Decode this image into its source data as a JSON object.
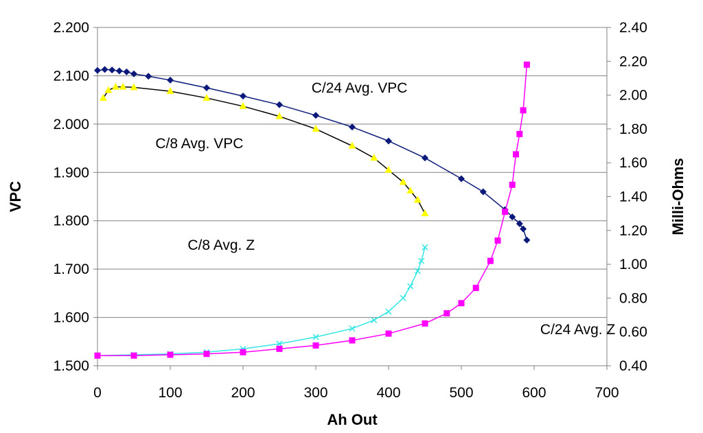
{
  "chart_data": {
    "type": "scatter",
    "xlabel": "Ah Out",
    "ylabel": "VPC",
    "y2label": "Milli-Ohms",
    "xlim": [
      0,
      700
    ],
    "ylim": [
      1.5,
      2.2
    ],
    "y2lim": [
      0.4,
      2.4
    ],
    "x_ticks": [
      "0",
      "100",
      "200",
      "300",
      "400",
      "500",
      "600",
      "700"
    ],
    "y_ticks": [
      "1.500",
      "1.600",
      "1.700",
      "1.800",
      "1.900",
      "2.000",
      "2.100",
      "2.200"
    ],
    "y2_ticks": [
      "0.40",
      "0.60",
      "0.80",
      "1.00",
      "1.20",
      "1.40",
      "1.60",
      "1.80",
      "2.00",
      "2.20",
      "2.40"
    ],
    "grid": "horizontal",
    "annotations": [
      {
        "text": "C/24 Avg. VPC",
        "x": 360,
        "y": 2.065,
        "axis": "left"
      },
      {
        "text": "C/8 Avg. VPC",
        "x": 140,
        "y": 1.95,
        "axis": "left"
      },
      {
        "text": "C/8 Avg. Z",
        "x": 170,
        "y": 1.74,
        "axis": "left"
      },
      {
        "text": "C/24 Avg. Z",
        "x": 660,
        "y": 1.565,
        "axis": "left"
      }
    ],
    "series": [
      {
        "axis": "left",
        "color": "#0b1a7a",
        "marker": "diamond",
        "x": [
          0,
          10,
          20,
          30,
          40,
          50,
          70,
          100,
          150,
          200,
          250,
          300,
          350,
          400,
          450,
          500,
          530,
          560,
          570,
          580,
          585,
          590
        ],
        "y": [
          2.111,
          2.113,
          2.112,
          2.11,
          2.108,
          2.104,
          2.099,
          2.091,
          2.075,
          2.058,
          2.04,
          2.018,
          1.994,
          1.965,
          1.93,
          1.887,
          1.86,
          1.823,
          1.808,
          1.794,
          1.783,
          1.76
        ]
      },
      {
        "axis": "left",
        "color": "#ffff00",
        "marker": "triangle",
        "x": [
          8,
          15,
          25,
          35,
          50,
          100,
          150,
          200,
          250,
          300,
          350,
          380,
          400,
          420,
          430,
          440,
          450
        ],
        "y": [
          2.054,
          2.07,
          2.077,
          2.077,
          2.076,
          2.068,
          2.054,
          2.037,
          2.016,
          1.99,
          1.955,
          1.93,
          1.905,
          1.88,
          1.862,
          1.843,
          1.815
        ]
      },
      {
        "axis": "right",
        "color": "#33e6e6",
        "marker": "x",
        "x": [
          0,
          50,
          100,
          150,
          200,
          250,
          300,
          350,
          380,
          400,
          420,
          430,
          440,
          445,
          450
        ],
        "y": [
          0.46,
          0.465,
          0.47,
          0.48,
          0.5,
          0.53,
          0.57,
          0.62,
          0.67,
          0.72,
          0.8,
          0.87,
          0.96,
          1.02,
          1.1
        ]
      },
      {
        "axis": "right",
        "color": "#ff00ff",
        "marker": "square",
        "x": [
          0,
          50,
          100,
          150,
          200,
          250,
          300,
          350,
          400,
          450,
          480,
          500,
          520,
          540,
          550,
          560,
          570,
          575,
          580,
          585,
          590
        ],
        "y": [
          0.46,
          0.46,
          0.465,
          0.47,
          0.48,
          0.5,
          0.52,
          0.55,
          0.59,
          0.65,
          0.71,
          0.77,
          0.86,
          1.02,
          1.14,
          1.31,
          1.47,
          1.65,
          1.77,
          1.91,
          2.18
        ]
      }
    ]
  }
}
